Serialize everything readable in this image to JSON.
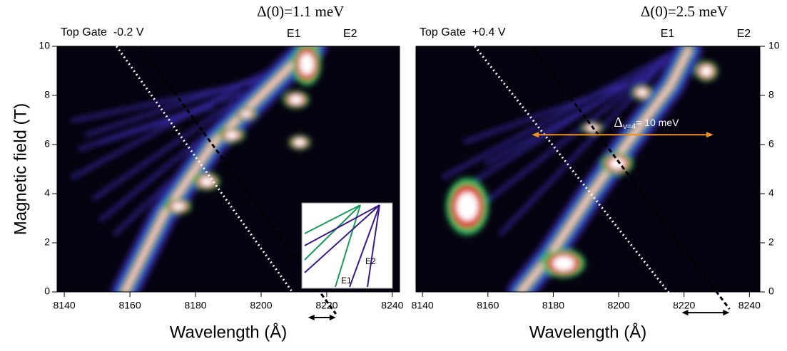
{
  "chart_data": [
    {
      "type": "heatmap",
      "title": "Top Gate  -0.2 V",
      "delta_label": "Δ(0)=1.1 meV",
      "xlabel": "Wavelength (Å)",
      "ylabel": "Magnetic field (T)",
      "xlim": [
        8137.8,
        8242.2
      ],
      "ylim": [
        10,
        0
      ],
      "xticks": [
        8140,
        8160,
        8180,
        8200,
        8220,
        8240
      ],
      "yticks": [
        0,
        2,
        4,
        6,
        8,
        10
      ],
      "series": [
        {
          "name": "E1",
          "style": "dotted",
          "color": "#ffffff",
          "x": [
            8155.9,
            8214.3
          ],
          "y": [
            10,
            -0.9
          ]
        },
        {
          "name": "E2",
          "style": "dashed",
          "color": "#000000",
          "x": [
            8163.3,
            8222.8
          ],
          "y": [
            10,
            -0.9
          ]
        }
      ],
      "inset": {
        "labels": [
          "E1",
          "E2"
        ]
      }
    },
    {
      "type": "heatmap",
      "title": "Top Gate  +0.4 V",
      "delta_label": "Δ(0)=2.5 meV",
      "xlabel": "Wavelength (Å)",
      "xlim": [
        8138,
        8243.2
      ],
      "ylim": [
        10,
        0
      ],
      "xticks": [
        8140,
        8160,
        8180,
        8200,
        8220,
        8240
      ],
      "yticks": [
        0,
        2,
        4,
        6,
        8,
        10
      ],
      "series": [
        {
          "name": "E1",
          "style": "dotted",
          "color": "#ffffff",
          "x": [
            8156,
            8219.3
          ],
          "y": [
            10,
            -0.7
          ]
        },
        {
          "name": "E2",
          "style": "dashed",
          "color": "#000000",
          "x": [
            8173.4,
            8233.9
          ],
          "y": [
            10,
            -0.7
          ]
        }
      ],
      "arrow": {
        "x": [
          8173.4,
          8229
        ],
        "y": 6.4,
        "color": "#f0901e",
        "label": {
          "symbol": "Δ",
          "subscript": "ν=4",
          "text": "= 10 meV"
        }
      }
    }
  ]
}
